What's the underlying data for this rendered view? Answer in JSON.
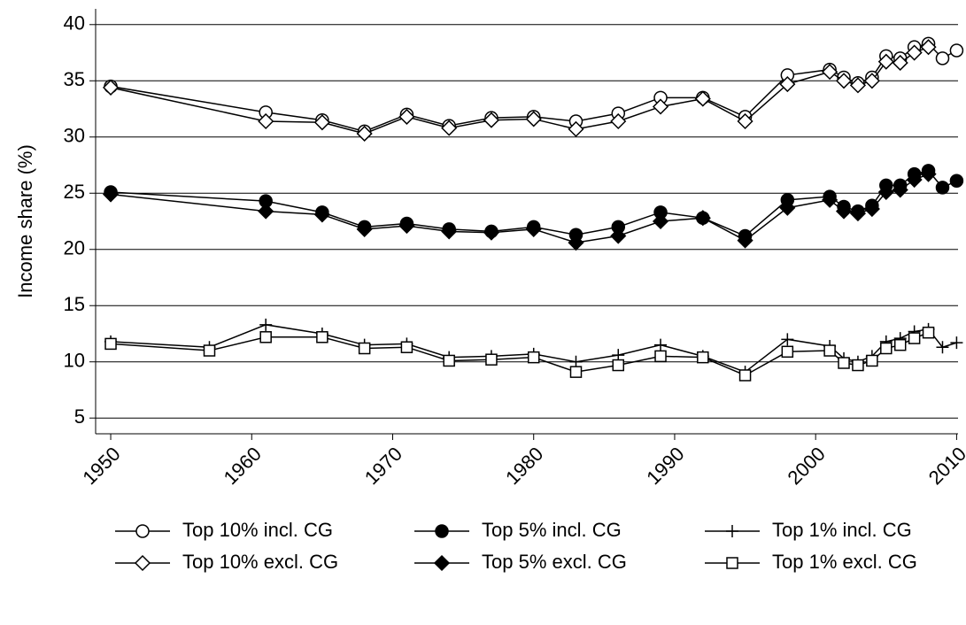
{
  "chart_data": {
    "type": "line",
    "y_label": "Income share (%)",
    "xlim": [
      1948.93,
      2010.1
    ],
    "ylim": [
      3.6,
      41.4
    ],
    "xticks": [
      1950,
      1960,
      1970,
      1980,
      1990,
      2000,
      2010
    ],
    "yticks": [
      5,
      10,
      15,
      20,
      25,
      30,
      35,
      40
    ],
    "grid": true,
    "legend_position": "bottom",
    "legend_columns": 3,
    "series": [
      {
        "name": "Top 10% incl. CG",
        "color": "#000000",
        "marker": "circle-open",
        "x": [
          1950,
          1961,
          1965,
          1968,
          1971,
          1974,
          1977,
          1980,
          1983,
          1986,
          1989,
          1992,
          1995,
          1998,
          2001,
          2002,
          2003,
          2004,
          2005,
          2006,
          2007,
          2008,
          2009,
          2010
        ],
        "values": [
          34.5,
          32.2,
          31.5,
          30.5,
          32.0,
          31.0,
          31.7,
          31.8,
          31.4,
          32.1,
          33.5,
          33.5,
          31.8,
          35.5,
          36.0,
          35.3,
          34.8,
          35.3,
          37.2,
          37.0,
          38.0,
          38.3,
          37.0,
          37.7
        ]
      },
      {
        "name": "Top 5% incl. CG",
        "color": "#000000",
        "marker": "circle",
        "x": [
          1950,
          1961,
          1965,
          1968,
          1971,
          1974,
          1977,
          1980,
          1983,
          1986,
          1989,
          1992,
          1995,
          1998,
          2001,
          2002,
          2003,
          2004,
          2005,
          2006,
          2007,
          2008,
          2009,
          2010
        ],
        "values": [
          25.1,
          24.3,
          23.3,
          22.0,
          22.3,
          21.8,
          21.6,
          22.0,
          21.3,
          22.0,
          23.3,
          22.8,
          21.2,
          24.4,
          24.7,
          23.8,
          23.4,
          23.9,
          25.7,
          25.7,
          26.7,
          27.0,
          25.5,
          26.1
        ]
      },
      {
        "name": "Top 1% incl. CG",
        "color": "#000000",
        "marker": "plus",
        "x": [
          1950,
          1957,
          1961,
          1965,
          1968,
          1971,
          1974,
          1977,
          1980,
          1983,
          1986,
          1989,
          1992,
          1995,
          1998,
          2001,
          2002,
          2003,
          2004,
          2005,
          2006,
          2007,
          2008,
          2009,
          2010
        ],
        "values": [
          11.8,
          11.3,
          13.3,
          12.5,
          11.5,
          11.6,
          10.4,
          10.5,
          10.7,
          10.0,
          10.6,
          11.5,
          10.5,
          9.1,
          12.0,
          11.4,
          10.3,
          10.0,
          10.5,
          11.8,
          12.1,
          12.7,
          12.9,
          11.3,
          11.7
        ]
      },
      {
        "name": "Top 10% excl. CG",
        "color": "#000000",
        "marker": "diamond-open",
        "x": [
          1950,
          1961,
          1965,
          1968,
          1971,
          1974,
          1977,
          1980,
          1983,
          1986,
          1989,
          1992,
          1995,
          1998,
          2001,
          2002,
          2003,
          2004,
          2005,
          2006,
          2007,
          2008
        ],
        "values": [
          34.4,
          31.4,
          31.3,
          30.3,
          31.8,
          30.8,
          31.5,
          31.6,
          30.7,
          31.4,
          32.7,
          33.4,
          31.4,
          34.7,
          35.8,
          35.0,
          34.6,
          35.0,
          36.7,
          36.6,
          37.5,
          38.0
        ]
      },
      {
        "name": "Top 5% excl. CG",
        "color": "#000000",
        "marker": "diamond",
        "x": [
          1950,
          1961,
          1965,
          1968,
          1971,
          1974,
          1977,
          1980,
          1983,
          1986,
          1989,
          1992,
          1995,
          1998,
          2001,
          2002,
          2003,
          2004,
          2005,
          2006,
          2007,
          2008
        ],
        "values": [
          24.9,
          23.4,
          23.1,
          21.8,
          22.1,
          21.6,
          21.5,
          21.8,
          20.6,
          21.2,
          22.5,
          22.8,
          20.8,
          23.7,
          24.4,
          23.4,
          23.2,
          23.6,
          25.1,
          25.3,
          26.2,
          26.7
        ]
      },
      {
        "name": "Top 1% excl. CG",
        "color": "#000000",
        "marker": "square-open",
        "x": [
          1950,
          1957,
          1961,
          1965,
          1968,
          1971,
          1974,
          1977,
          1980,
          1983,
          1986,
          1989,
          1992,
          1995,
          1998,
          2001,
          2002,
          2003,
          2004,
          2005,
          2006,
          2007,
          2008
        ],
        "values": [
          11.6,
          11.0,
          12.2,
          12.2,
          11.2,
          11.3,
          10.1,
          10.2,
          10.4,
          9.1,
          9.7,
          10.5,
          10.4,
          8.8,
          10.9,
          11.0,
          9.9,
          9.7,
          10.1,
          11.2,
          11.5,
          12.1,
          12.6
        ]
      }
    ]
  }
}
